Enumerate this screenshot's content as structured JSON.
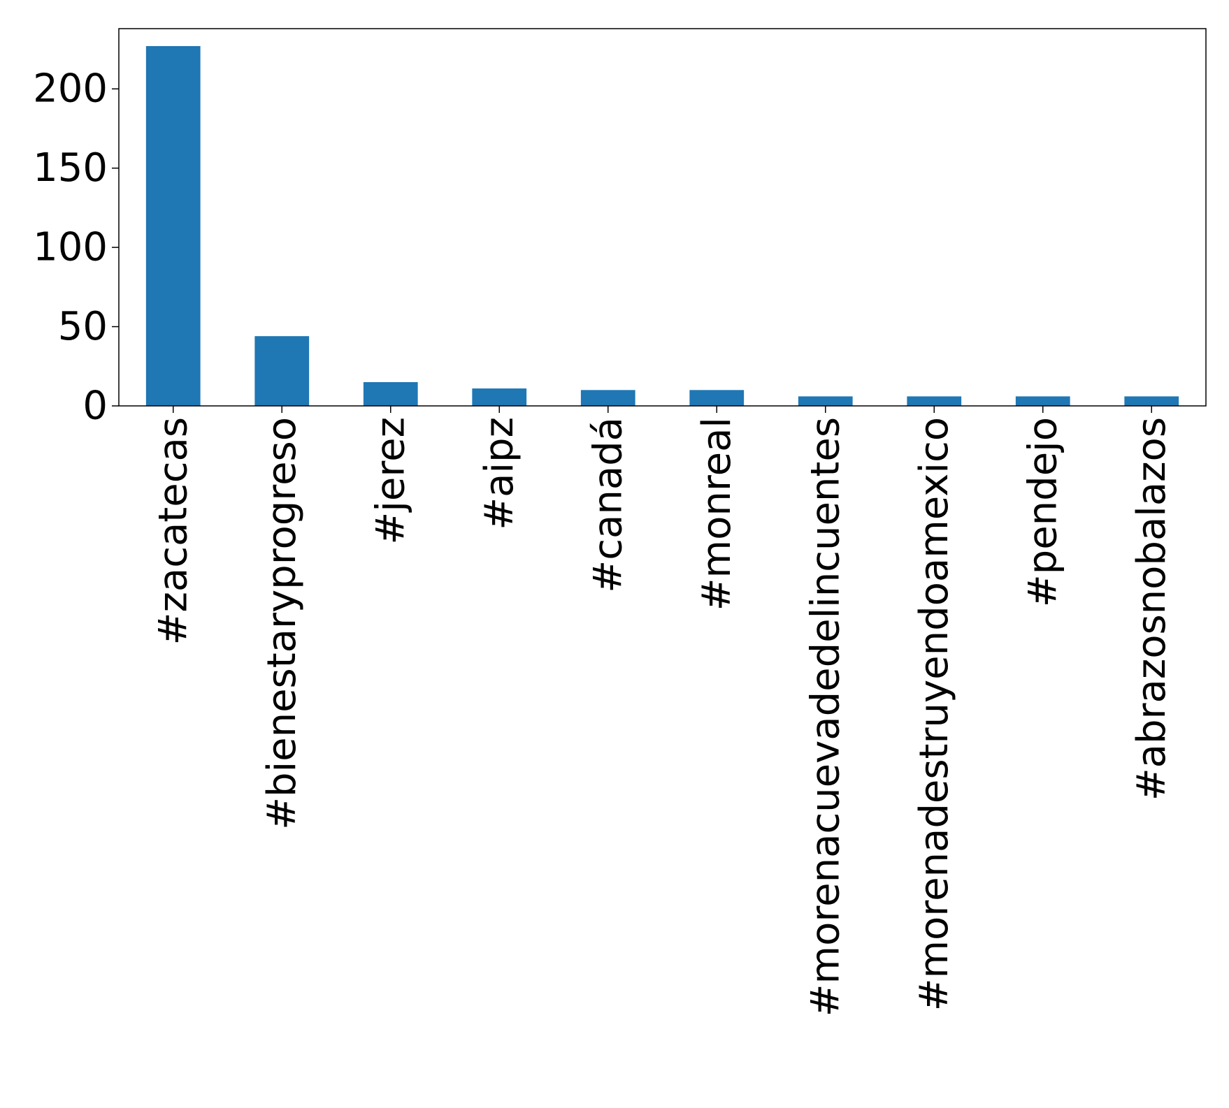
{
  "chart_data": {
    "type": "bar",
    "title": "",
    "xlabel": "",
    "ylabel": "",
    "categories": [
      "#zacatecas",
      "#bienestaryprogreso",
      "#jerez",
      "#aipz",
      "#canadá",
      "#monreal",
      "#morenacuevadedelincuentes",
      "#morenadestruyendoamexico",
      "#pendejo",
      "#abrazosnobalazos"
    ],
    "values": [
      227,
      44,
      15,
      11,
      10,
      10,
      6,
      6,
      6,
      6
    ],
    "ylim": [
      0,
      238
    ],
    "yticks": [
      0,
      50,
      100,
      150,
      200
    ],
    "bar_color": "#1f77b4",
    "grid": false,
    "legend": "none"
  }
}
